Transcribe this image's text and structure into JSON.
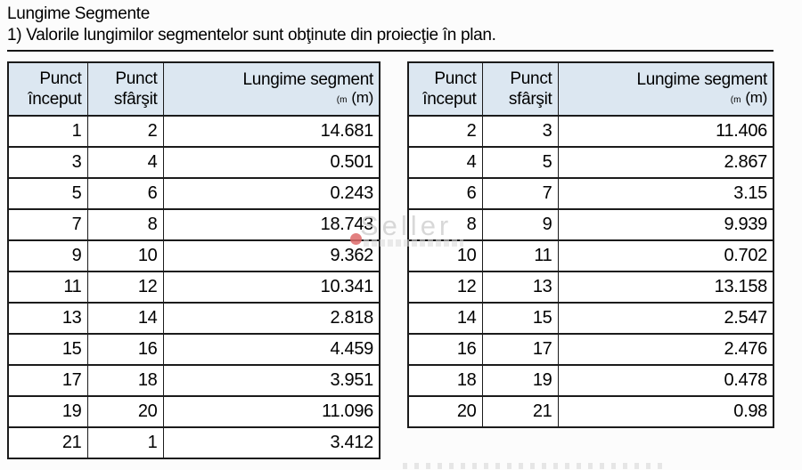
{
  "page": {
    "title": "Lungime Segmente",
    "note": "1) Valorile lungimilor segmentelor sunt obţinute din proiecţie în plan."
  },
  "colors": {
    "header_bg": "#dce7f1",
    "border": "#1b1b1b",
    "watermark": "#cfcfcf",
    "watermark_dot": "#dd6a6a"
  },
  "watermark": {
    "text": "Seller"
  },
  "table_headers": {
    "col1_line1": "Punct",
    "col1_line2": "început",
    "col2_line1": "Punct",
    "col2_line2": "sfârşit",
    "col3_line1": "Lungime segment",
    "col3_unit_small": "(m",
    "col3_unit": "(m)"
  },
  "left_table": {
    "rows": [
      {
        "start": "1",
        "end": "2",
        "length": "14.681"
      },
      {
        "start": "3",
        "end": "4",
        "length": "0.501"
      },
      {
        "start": "5",
        "end": "6",
        "length": "0.243"
      },
      {
        "start": "7",
        "end": "8",
        "length": "18.743"
      },
      {
        "start": "9",
        "end": "10",
        "length": "9.362"
      },
      {
        "start": "11",
        "end": "12",
        "length": "10.341"
      },
      {
        "start": "13",
        "end": "14",
        "length": "2.818"
      },
      {
        "start": "15",
        "end": "16",
        "length": "4.459"
      },
      {
        "start": "17",
        "end": "18",
        "length": "3.951"
      },
      {
        "start": "19",
        "end": "20",
        "length": "11.096"
      },
      {
        "start": "21",
        "end": "1",
        "length": "3.412"
      }
    ]
  },
  "right_table": {
    "rows": [
      {
        "start": "2",
        "end": "3",
        "length": "11.406"
      },
      {
        "start": "4",
        "end": "5",
        "length": "2.867"
      },
      {
        "start": "6",
        "end": "7",
        "length": "3.15"
      },
      {
        "start": "8",
        "end": "9",
        "length": "9.939"
      },
      {
        "start": "10",
        "end": "11",
        "length": "0.702"
      },
      {
        "start": "12",
        "end": "13",
        "length": "13.158"
      },
      {
        "start": "14",
        "end": "15",
        "length": "2.547"
      },
      {
        "start": "16",
        "end": "17",
        "length": "2.476"
      },
      {
        "start": "18",
        "end": "19",
        "length": "0.478"
      },
      {
        "start": "20",
        "end": "21",
        "length": "0.98"
      }
    ]
  }
}
